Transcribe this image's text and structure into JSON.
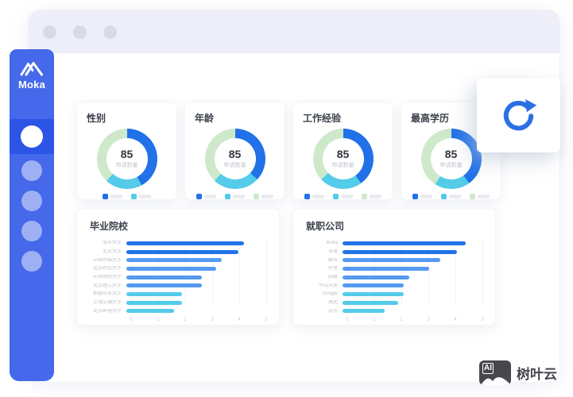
{
  "window": {
    "traffic_dots": 3
  },
  "sidebar": {
    "logo_text": "Moka",
    "nav_items": [
      "dashboard-active",
      "nav-2",
      "nav-3",
      "nav-4",
      "nav-5"
    ]
  },
  "colors": {
    "sidebar_blue": "#4569ea",
    "sidebar_active": "#2c55e7",
    "donut_blue": "#2171e8",
    "donut_cyan": "#53cbe9",
    "donut_green": "#cde9ca",
    "bar_dark_blue": "#2273e8",
    "bar_mid_blue": "#549af0",
    "bar_cyan": "#53cbe9",
    "refresh_icon": "#2b6fe3"
  },
  "chart_data": [
    {
      "type": "donut",
      "title": "性别",
      "center_value": "85",
      "center_label": "申请数量",
      "segments": [
        {
          "color": "#2171e8",
          "pct": 42
        },
        {
          "color": "#53cbe9",
          "pct": 20
        },
        {
          "color": "#cde9ca",
          "pct": 38
        }
      ],
      "legend_colors": [
        "#2171e8",
        "#53cbe9"
      ]
    },
    {
      "type": "donut",
      "title": "年龄",
      "center_value": "85",
      "center_label": "申请数量",
      "segments": [
        {
          "color": "#2171e8",
          "pct": 37
        },
        {
          "color": "#53cbe9",
          "pct": 25
        },
        {
          "color": "#cde9ca",
          "pct": 38
        }
      ],
      "legend_colors": [
        "#2171e8",
        "#53cbe9",
        "#cde9ca"
      ]
    },
    {
      "type": "donut",
      "title": "工作经验",
      "center_value": "85",
      "center_label": "申请数量",
      "segments": [
        {
          "color": "#2171e8",
          "pct": 40
        },
        {
          "color": "#53cbe9",
          "pct": 23
        },
        {
          "color": "#cde9ca",
          "pct": 37
        }
      ],
      "legend_colors": [
        "#2171e8",
        "#53cbe9",
        "#cde9ca"
      ]
    },
    {
      "type": "donut",
      "title": "最高学历",
      "center_value": "85",
      "center_label": "申请数量",
      "segments": [
        {
          "color": "#2171e8",
          "pct": 40
        },
        {
          "color": "#53cbe9",
          "pct": 19
        },
        {
          "color": "#cde9ca",
          "pct": 41
        }
      ],
      "legend_colors": [
        "#2171e8",
        "#53cbe9",
        "#cde9ca"
      ]
    },
    {
      "type": "bar",
      "orientation": "horizontal",
      "title": "毕业院校",
      "categories": [
        "清华大学",
        "北京大学",
        "中国传媒大学",
        "北京师范大学",
        "中央财经大学",
        "北京理工大学",
        "新疆农业大学",
        "上海交通大学",
        "北京邮电大学"
      ],
      "values": [
        4.2,
        4.0,
        3.4,
        3.2,
        2.7,
        2.7,
        2.0,
        2.0,
        1.7
      ],
      "bar_colors": [
        "#2273e8",
        "#2273e8",
        "#549af0",
        "#549af0",
        "#549af0",
        "#549af0",
        "#53cbe9",
        "#53cbe9",
        "#53cbe9"
      ],
      "xticks": [
        "0",
        "1",
        "2",
        "3",
        "4",
        "5"
      ],
      "xmax": 5,
      "grid": true
    },
    {
      "type": "bar",
      "orientation": "horizontal",
      "title": "就职公司",
      "categories": [
        "Moka",
        "百度",
        "腾讯",
        "阿里",
        "网易",
        "今日头条",
        "Google",
        "美团",
        "京东"
      ],
      "values": [
        4.4,
        4.1,
        3.5,
        3.1,
        2.4,
        2.2,
        2.2,
        2.0,
        1.5
      ],
      "bar_colors": [
        "#2273e8",
        "#2273e8",
        "#549af0",
        "#549af0",
        "#549af0",
        "#549af0",
        "#53cbe9",
        "#53cbe9",
        "#53cbe9"
      ],
      "xticks": [
        "0",
        "1",
        "2",
        "3",
        "4",
        "5"
      ],
      "xmax": 5,
      "grid": true
    }
  ],
  "watermark": {
    "badge": "AI",
    "text": "树叶云"
  }
}
